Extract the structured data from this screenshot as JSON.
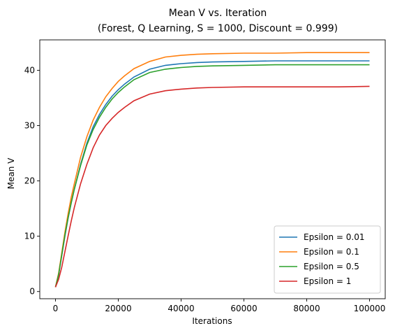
{
  "chart_data": {
    "type": "line",
    "title": "Mean V vs. Iteration",
    "subtitle": "(Forest, Q Learning, S = 1000, Discount = 0.999)",
    "xlabel": "Iterations",
    "ylabel": "Mean V",
    "xlim": [
      -5000,
      105000
    ],
    "ylim": [
      -1.3,
      45.5
    ],
    "xticks": [
      0,
      20000,
      40000,
      60000,
      80000,
      100000
    ],
    "yticks": [
      0,
      10,
      20,
      30,
      40
    ],
    "grid": false,
    "legend_position": "lower-right",
    "x": [
      0,
      1000,
      2000,
      3000,
      4000,
      5000,
      6000,
      8000,
      10000,
      12000,
      14000,
      16000,
      18000,
      20000,
      22000,
      25000,
      30000,
      35000,
      40000,
      45000,
      50000,
      60000,
      70000,
      80000,
      90000,
      100000
    ],
    "series": [
      {
        "name": "Epsilon = 0.01",
        "color": "#1f77b4",
        "values": [
          0.8,
          3.0,
          6.5,
          10.0,
          13.2,
          16.0,
          18.5,
          23.0,
          26.8,
          29.8,
          32.0,
          33.8,
          35.3,
          36.5,
          37.5,
          38.8,
          40.2,
          40.9,
          41.2,
          41.4,
          41.5,
          41.6,
          41.7,
          41.7,
          41.7,
          41.7
        ]
      },
      {
        "name": "Epsilon = 0.1",
        "color": "#ff7f0e",
        "values": [
          0.8,
          3.3,
          7.0,
          10.7,
          14.0,
          17.0,
          19.5,
          24.3,
          28.0,
          31.0,
          33.3,
          35.2,
          36.7,
          38.0,
          39.0,
          40.3,
          41.6,
          42.4,
          42.7,
          42.9,
          43.0,
          43.1,
          43.1,
          43.2,
          43.2,
          43.2
        ]
      },
      {
        "name": "Epsilon = 0.5",
        "color": "#2ca02c",
        "values": [
          0.8,
          3.1,
          6.6,
          10.2,
          13.3,
          16.0,
          18.5,
          22.8,
          26.5,
          29.3,
          31.5,
          33.3,
          34.8,
          36.0,
          37.0,
          38.3,
          39.6,
          40.2,
          40.5,
          40.7,
          40.8,
          40.9,
          41.0,
          41.0,
          41.0,
          41.0
        ]
      },
      {
        "name": "Epsilon = 1",
        "color": "#d62728",
        "values": [
          0.8,
          2.2,
          4.4,
          7.2,
          10.0,
          12.7,
          15.2,
          19.5,
          23.0,
          26.0,
          28.3,
          30.0,
          31.3,
          32.4,
          33.3,
          34.5,
          35.7,
          36.3,
          36.6,
          36.8,
          36.9,
          37.0,
          37.0,
          37.0,
          37.0,
          37.1
        ]
      }
    ]
  }
}
